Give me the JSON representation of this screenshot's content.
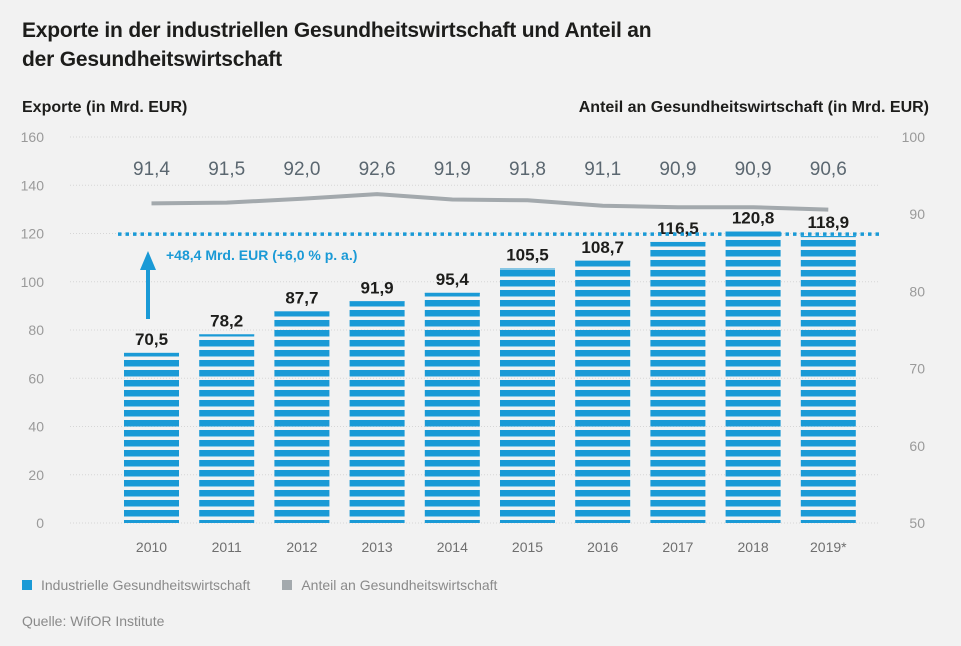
{
  "title_lines": [
    "Exporte in der industriellen Gesundheitswirtschaft und Anteil an",
    "der Gesundheitswirtschaft"
  ],
  "left_axis_title": "Exporte (in Mrd. EUR)",
  "right_axis_title": "Anteil an Gesundheitswirtschaft (in Mrd. EUR)",
  "annotation": "+48,4 Mrd. EUR (+6,0 % p. a.)",
  "legend": [
    {
      "label": "Industrielle Gesundheitswirtschaft",
      "color": "#1a9ad6"
    },
    {
      "label": "Anteil an Gesundheitswirtschaft",
      "color": "#a3a9ad"
    }
  ],
  "source": "Quelle: WifOR Institute",
  "chart_data": {
    "type": "bar",
    "categories": [
      "2010",
      "2011",
      "2012",
      "2013",
      "2014",
      "2015",
      "2016",
      "2017",
      "2018",
      "2019*"
    ],
    "series": [
      {
        "name": "Industrielle Gesundheitswirtschaft",
        "axis": "left",
        "values": [
          70.5,
          78.2,
          87.7,
          91.9,
          95.4,
          105.5,
          108.7,
          116.5,
          120.8,
          118.9
        ],
        "labels": [
          "70,5",
          "78,2",
          "87,7",
          "91,9",
          "95,4",
          "105,5",
          "108,7",
          "116,5",
          "120,8",
          "118,9"
        ],
        "color": "#1a9ad6"
      },
      {
        "name": "Anteil an Gesundheitswirtschaft",
        "axis": "right",
        "type": "line",
        "values": [
          91.4,
          91.5,
          92.0,
          92.6,
          91.9,
          91.8,
          91.1,
          90.9,
          90.9,
          90.6
        ],
        "labels": [
          "91,4",
          "91,5",
          "92,0",
          "92,6",
          "91,9",
          "91,8",
          "91,1",
          "90,9",
          "90,9",
          "90,6"
        ],
        "color": "#a3a9ad"
      }
    ],
    "reference_line_value": 118.9,
    "y_left": {
      "min": 0,
      "max": 160,
      "ticks": [
        0,
        20,
        40,
        60,
        80,
        100,
        120,
        140,
        160
      ]
    },
    "y_right": {
      "min": 50,
      "max": 100,
      "ticks": [
        50,
        60,
        70,
        80,
        90,
        100
      ]
    },
    "grid": true
  }
}
